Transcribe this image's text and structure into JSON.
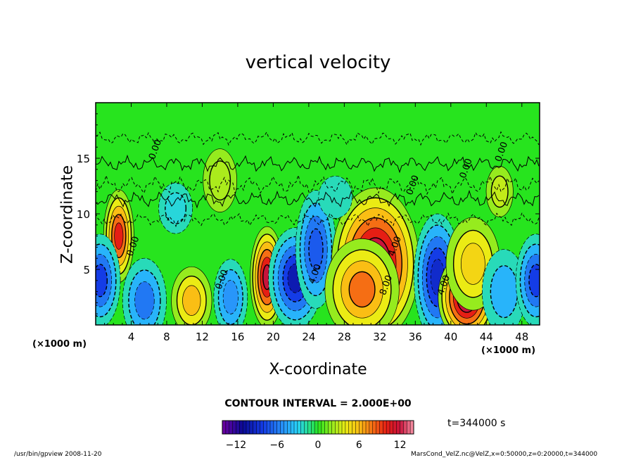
{
  "chart_data": {
    "type": "heatmap",
    "title": "vertical velocity",
    "xlabel": "X-coordinate",
    "ylabel": "Z-coordinate",
    "x_unit": "(×1000 m)",
    "xlim": [
      0,
      50
    ],
    "ylim": [
      0,
      20
    ],
    "x_ticks": [
      4,
      8,
      12,
      16,
      20,
      24,
      28,
      32,
      36,
      40,
      44,
      48
    ],
    "y_ticks": [
      5,
      10,
      15
    ],
    "contour_interval": "CONTOUR INTERVAL = 2.000E+00",
    "contour_labels": [
      {
        "text": "0.00",
        "x": 7,
        "y": 15.7
      },
      {
        "text": "0.00",
        "x": 4.5,
        "y": 7
      },
      {
        "text": "0.00",
        "x": 14.5,
        "y": 4
      },
      {
        "text": "4.00",
        "x": 25,
        "y": 4.5
      },
      {
        "text": "4.00",
        "x": 34,
        "y": 7
      },
      {
        "text": "8.00",
        "x": 33,
        "y": 3.5
      },
      {
        "text": "4.00",
        "x": 39.5,
        "y": 3.5
      },
      {
        "text": "0.00",
        "x": 36,
        "y": 12.5
      },
      {
        "text": "0.00",
        "x": 42,
        "y": 14
      },
      {
        "text": "0.00",
        "x": 46,
        "y": 15.5
      }
    ],
    "features": [
      {
        "x": 2.6,
        "y": 8.0,
        "value": 10,
        "sx": 0.9,
        "sy": 2.2
      },
      {
        "x": 5.5,
        "y": 2.2,
        "value": -6,
        "sx": 1.3,
        "sy": 2.0
      },
      {
        "x": 0.5,
        "y": 4.0,
        "value": -8,
        "sx": 1.2,
        "sy": 2.2
      },
      {
        "x": 10.8,
        "y": 2.2,
        "value": 6,
        "sx": 1.2,
        "sy": 1.6
      },
      {
        "x": 15.2,
        "y": 2.5,
        "value": -5,
        "sx": 1.0,
        "sy": 1.8
      },
      {
        "x": 19.3,
        "y": 4.3,
        "value": 12,
        "sx": 1.0,
        "sy": 2.4
      },
      {
        "x": 22.5,
        "y": 4.2,
        "value": -10,
        "sx": 1.6,
        "sy": 2.4
      },
      {
        "x": 24.8,
        "y": 6.8,
        "value": -7,
        "sx": 1.2,
        "sy": 2.8
      },
      {
        "x": 31.5,
        "y": 5.5,
        "value": 14,
        "sx": 2.6,
        "sy": 3.6
      },
      {
        "x": 30.0,
        "y": 3.2,
        "value": 8,
        "sx": 2.2,
        "sy": 2.4
      },
      {
        "x": 38.5,
        "y": 4.3,
        "value": -9,
        "sx": 1.4,
        "sy": 3.0
      },
      {
        "x": 41.8,
        "y": 2.5,
        "value": 13,
        "sx": 1.7,
        "sy": 2.1
      },
      {
        "x": 42.5,
        "y": 5.5,
        "value": 5,
        "sx": 1.6,
        "sy": 2.2
      },
      {
        "x": 46.0,
        "y": 3.0,
        "value": -4,
        "sx": 1.3,
        "sy": 2.0
      },
      {
        "x": 49.6,
        "y": 4.0,
        "value": -8,
        "sx": 1.2,
        "sy": 2.2
      },
      {
        "x": 45.5,
        "y": 12.0,
        "value": 3,
        "sx": 0.8,
        "sy": 1.2
      },
      {
        "x": 14.0,
        "y": 13.0,
        "value": 2.5,
        "sx": 1.0,
        "sy": 1.5
      },
      {
        "x": 9.0,
        "y": 10.5,
        "value": -2.5,
        "sx": 1.0,
        "sy": 1.2
      },
      {
        "x": 27.0,
        "y": 11.5,
        "value": -2,
        "sx": 1.0,
        "sy": 1.0
      }
    ],
    "colorbar": {
      "range": [
        -14,
        14
      ],
      "ticks": [
        -12,
        -6,
        0,
        6,
        12
      ]
    },
    "colors": {
      "background": "#27e41e",
      "frame": "#000000"
    }
  },
  "annotations": {
    "time": "t=344000 s",
    "footer_left": "/usr/bin/gpview  2008-11-20",
    "footer_right": "MarsCond_VelZ.nc@VelZ,x=0:50000,z=0:20000,t=344000"
  }
}
